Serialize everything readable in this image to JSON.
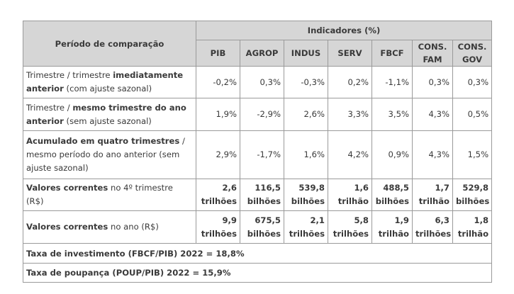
{
  "header": {
    "period_label": "Período de comparação",
    "group_label": "Indicadores (%)",
    "columns": [
      {
        "line1": "PIB",
        "line2": ""
      },
      {
        "line1": "AGROP",
        "line2": ""
      },
      {
        "line1": "INDUS",
        "line2": ""
      },
      {
        "line1": "SERV",
        "line2": ""
      },
      {
        "line1": "FBCF",
        "line2": ""
      },
      {
        "line1": "CONS.",
        "line2": "FAM"
      },
      {
        "line1": "CONS.",
        "line2": "GOV"
      }
    ]
  },
  "rows": [
    {
      "label": [
        {
          "text": "Trimestre / trimestre ",
          "bold": false
        },
        {
          "text": "imediatamente anterior",
          "bold": true
        },
        {
          "text": " (com ajuste sazonal)",
          "bold": false
        }
      ],
      "values": [
        [
          "-0,2%",
          ""
        ],
        [
          "0,3%",
          ""
        ],
        [
          "-0,3%",
          ""
        ],
        [
          "0,2%",
          ""
        ],
        [
          "-1,1%",
          ""
        ],
        [
          "0,3%",
          ""
        ],
        [
          "0,3%",
          ""
        ]
      ]
    },
    {
      "label": [
        {
          "text": "Trimestre / ",
          "bold": false
        },
        {
          "text": "mesmo trimestre do ano anterior",
          "bold": true
        },
        {
          "text": " (sem ajuste sazonal)",
          "bold": false
        }
      ],
      "values": [
        [
          "1,9%",
          ""
        ],
        [
          "-2,9%",
          ""
        ],
        [
          "2,6%",
          ""
        ],
        [
          "3,3%",
          ""
        ],
        [
          "3,5%",
          ""
        ],
        [
          "4,3%",
          ""
        ],
        [
          "0,5%",
          ""
        ]
      ]
    },
    {
      "label": [
        {
          "text": "Acumulado em quatro trimestres",
          "bold": true
        },
        {
          "text": " / mesmo período do ano anterior (sem ajuste sazonal)",
          "bold": false
        }
      ],
      "values": [
        [
          "2,9%",
          ""
        ],
        [
          "-1,7%",
          ""
        ],
        [
          "1,6%",
          ""
        ],
        [
          "4,2%",
          ""
        ],
        [
          "0,9%",
          ""
        ],
        [
          "4,3%",
          ""
        ],
        [
          "1,5%",
          ""
        ]
      ]
    },
    {
      "label": [
        {
          "text": "Valores correntes",
          "bold": true
        },
        {
          "text": " no 4º trimestre (R$)",
          "bold": false
        }
      ],
      "values": [
        [
          "2,6",
          "trilhões"
        ],
        [
          "116,5",
          "bilhões"
        ],
        [
          "539,8",
          "bilhões"
        ],
        [
          "1,6",
          "trilhão"
        ],
        [
          "488,5",
          "bilhões"
        ],
        [
          "1,7",
          "trilhão"
        ],
        [
          "529,8",
          "bilhões"
        ]
      ]
    },
    {
      "label": [
        {
          "text": "Valores correntes",
          "bold": true
        },
        {
          "text": " no ano (R$)",
          "bold": false
        }
      ],
      "values": [
        [
          "9,9",
          "trilhões"
        ],
        [
          "675,5",
          "bilhões"
        ],
        [
          "2,1",
          "trilhões"
        ],
        [
          "5,8",
          "trilhões"
        ],
        [
          "1,9",
          "trilhão"
        ],
        [
          "6,3",
          "trilhões"
        ],
        [
          "1,8",
          "trilhão"
        ]
      ]
    }
  ],
  "footer": [
    "Taxa de investimento (FBCF/PIB) 2022 = 18,8%",
    "Taxa de poupança (POUP/PIB) 2022 = 15,9%"
  ]
}
